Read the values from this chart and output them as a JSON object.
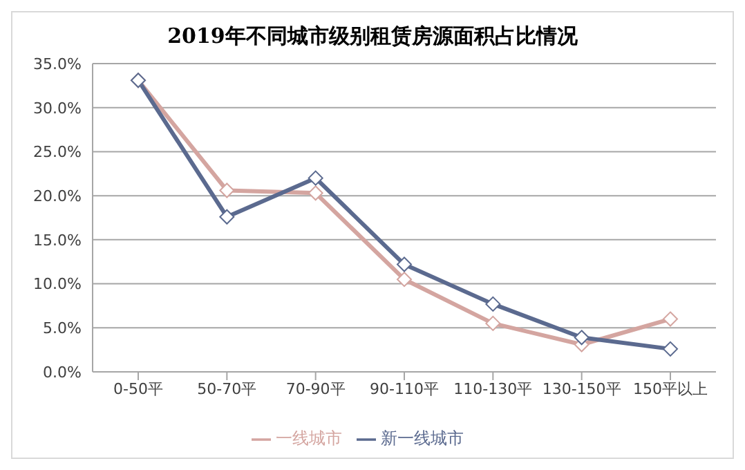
{
  "chart_data": {
    "type": "line",
    "title": "2019年不同城市级别租赁房源面积占比情况",
    "categories": [
      "0-50平",
      "50-70平",
      "70-90平",
      "90-110平",
      "110-130平",
      "130-150平",
      "150平以上"
    ],
    "series": [
      {
        "name": "一线城市",
        "color": "#d4a5a0",
        "values": [
          33.1,
          20.6,
          20.3,
          10.5,
          5.5,
          3.1,
          6.0
        ]
      },
      {
        "name": "新一线城市",
        "color": "#5b6a8f",
        "values": [
          33.1,
          17.6,
          22.0,
          12.2,
          7.7,
          3.9,
          2.6
        ]
      }
    ],
    "ylim": [
      0,
      35
    ],
    "yticks": [
      {
        "value": 0,
        "label": "0.0%"
      },
      {
        "value": 5,
        "label": "5.0%"
      },
      {
        "value": 10,
        "label": "10.0%"
      },
      {
        "value": 15,
        "label": "15.0%"
      },
      {
        "value": 20,
        "label": "20.0%"
      },
      {
        "value": 25,
        "label": "25.0%"
      },
      {
        "value": 30,
        "label": "30.0%"
      },
      {
        "value": 35,
        "label": "35.0%"
      }
    ],
    "grid": "y",
    "legend": "bottom",
    "marker": "diamond",
    "line_style": "solid"
  }
}
